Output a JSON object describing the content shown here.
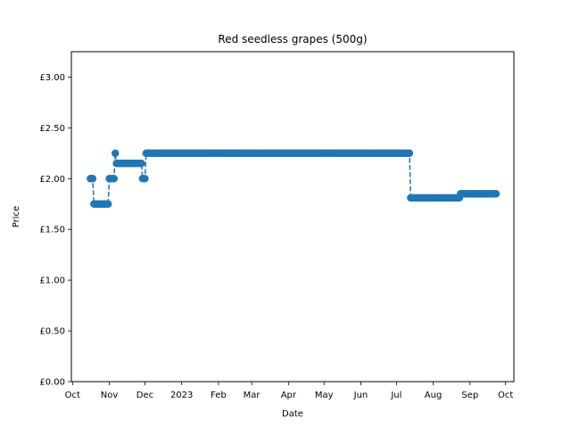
{
  "chart_data": {
    "type": "line",
    "title": "Red seedless grapes (500g)",
    "xlabel": "Date",
    "ylabel": "Price",
    "x_ticks": [
      "2022-10-01",
      "2022-11-01",
      "2022-12-01",
      "2023-01-01",
      "2023-02-01",
      "2023-03-01",
      "2023-04-01",
      "2023-05-01",
      "2023-06-01",
      "2023-07-01",
      "2023-08-01",
      "2023-09-01",
      "2023-10-01"
    ],
    "x_tick_labels": [
      "Oct",
      "Nov",
      "Dec",
      "2023",
      "Feb",
      "Mar",
      "Apr",
      "May",
      "Jun",
      "Jul",
      "Aug",
      "Sep",
      "Oct"
    ],
    "xlim": [
      "2022-09-30",
      "2023-10-08"
    ],
    "y_ticks": [
      0,
      0.5,
      1.0,
      1.5,
      2.0,
      2.5,
      3.0
    ],
    "y_tick_labels": [
      "£0.00",
      "£0.50",
      "£1.00",
      "£1.50",
      "£2.00",
      "£2.50",
      "£3.00"
    ],
    "ylim": [
      0,
      3.25
    ],
    "grid": false,
    "color": "#1f77b4",
    "line_style": "dashed",
    "marker": "circle",
    "segments": [
      {
        "start": "2022-10-16",
        "end": "2022-10-18",
        "price": 2.0
      },
      {
        "start": "2022-10-19",
        "end": "2022-10-31",
        "price": 1.75
      },
      {
        "start": "2022-11-01",
        "end": "2022-11-05",
        "price": 2.0
      },
      {
        "start": "2022-11-06",
        "end": "2022-11-06",
        "price": 2.25
      },
      {
        "start": "2022-11-07",
        "end": "2022-11-28",
        "price": 2.15
      },
      {
        "start": "2022-11-29",
        "end": "2022-12-01",
        "price": 2.0
      },
      {
        "start": "2022-12-02",
        "end": "2023-07-12",
        "price": 2.25
      },
      {
        "start": "2023-07-13",
        "end": "2023-08-23",
        "price": 1.81
      },
      {
        "start": "2023-08-24",
        "end": "2023-09-23",
        "price": 1.85
      }
    ]
  }
}
